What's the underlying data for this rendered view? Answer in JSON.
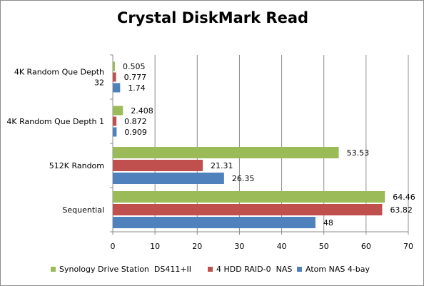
{
  "chart_data": {
    "type": "bar",
    "orientation": "horizontal",
    "title": "Crystal DiskMark Read",
    "categories": [
      "4K Random Que Depth 32",
      "4K Random Que Depth 1",
      "512K Random",
      "Sequential"
    ],
    "category_lines": [
      [
        "4K Random Que Depth",
        "32"
      ],
      [
        "4K Random Que Depth 1"
      ],
      [
        "512K Random"
      ],
      [
        "Sequential"
      ]
    ],
    "series": [
      {
        "name": "Synology Drive Station  DS411+II",
        "color": "#9bbb59",
        "values": [
          0.505,
          2.408,
          53.53,
          64.46
        ],
        "labels": [
          "0.505",
          "2.408",
          "53.53",
          "64.46"
        ]
      },
      {
        "name": "4 HDD RAID-0  NAS",
        "color": "#c0504d",
        "values": [
          0.777,
          0.872,
          21.31,
          63.82
        ],
        "labels": [
          "0.777",
          "0.872",
          "21.31",
          "63.82"
        ]
      },
      {
        "name": "Atom NAS 4-bay",
        "color": "#4f81bd",
        "values": [
          1.74,
          0.909,
          26.35,
          48
        ],
        "labels": [
          "1.74",
          "0.909",
          "26.35",
          "48"
        ]
      }
    ],
    "xlim": [
      0,
      70
    ],
    "xticks": [
      "0",
      "10",
      "20",
      "30",
      "40",
      "50",
      "60",
      "70"
    ],
    "grid": true,
    "legend_position": "bottom"
  }
}
